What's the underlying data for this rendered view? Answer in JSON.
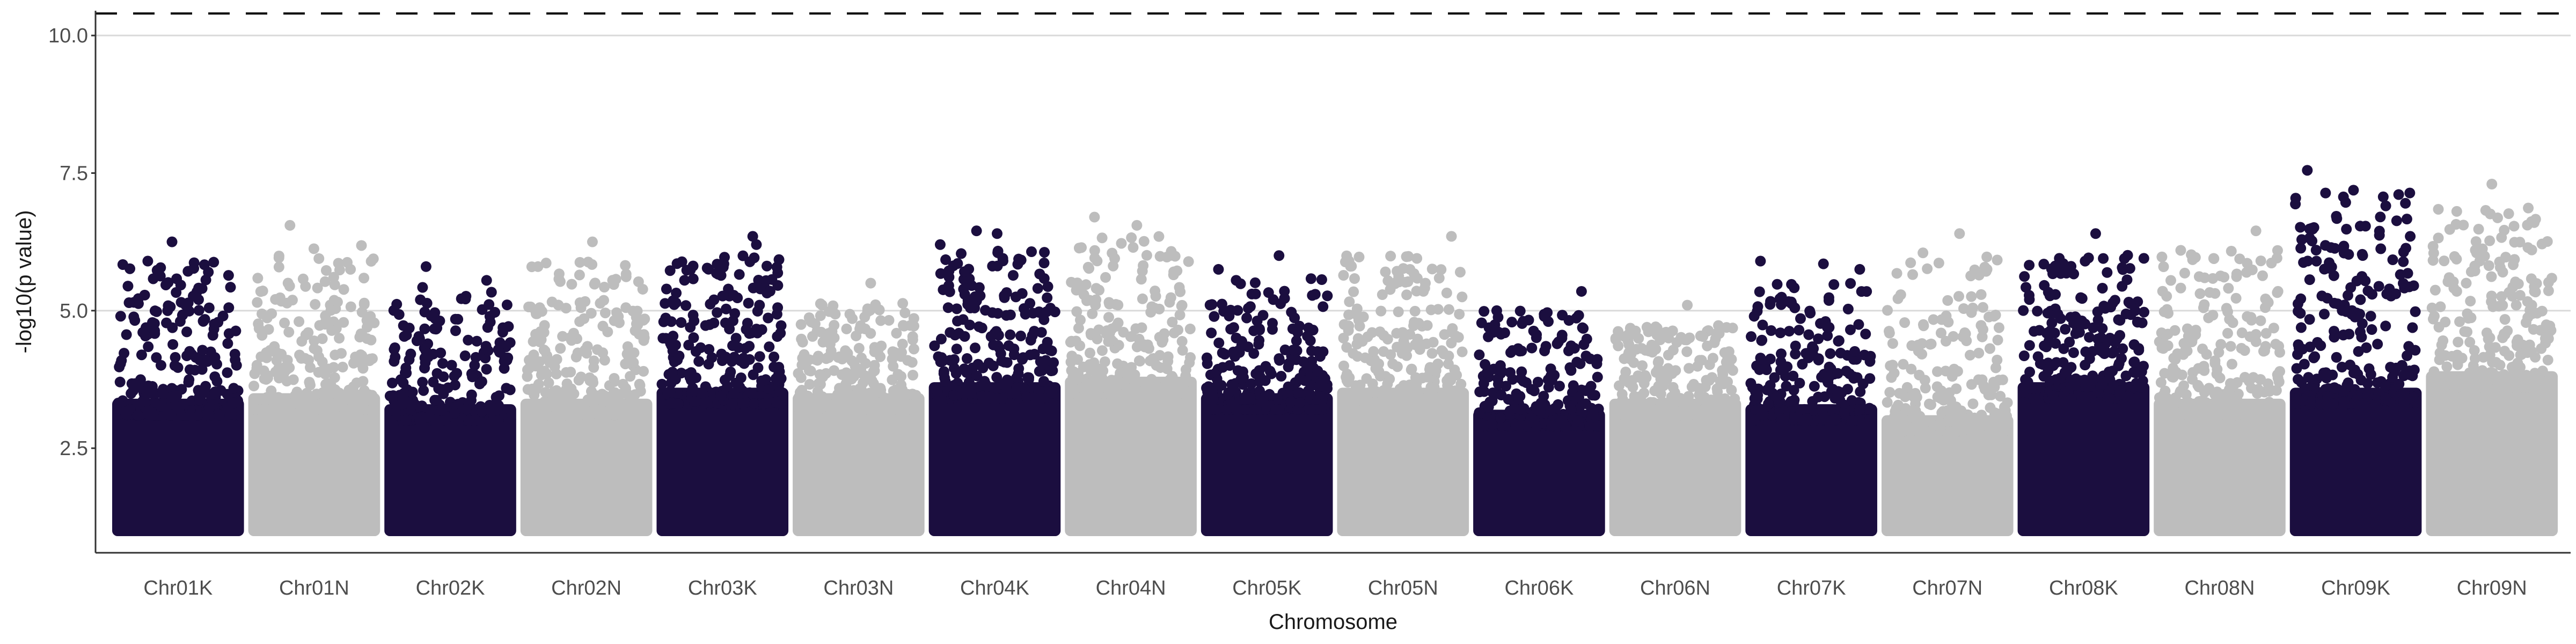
{
  "chart_data": {
    "type": "scatter",
    "title": "",
    "xlabel": "Chromosome",
    "ylabel": "-log10(p value)",
    "ylim": [
      0.6,
      10.45
    ],
    "yticks": [
      2.5,
      5.0,
      7.5,
      10.0
    ],
    "ytick_labels": [
      "2.5",
      "5.0",
      "7.5",
      "10.0"
    ],
    "grid_y": [
      5.0,
      10.0
    ],
    "threshold_line": {
      "y": 10.4,
      "style": "dashed"
    },
    "colors": {
      "dark": "#1b0e3f",
      "light": "#bdbdbd",
      "grid": "#d9d9d9",
      "threshold": "#000000"
    },
    "categories": [
      "Chr01K",
      "Chr01N",
      "Chr02K",
      "Chr02N",
      "Chr03K",
      "Chr03N",
      "Chr04K",
      "Chr04N",
      "Chr05K",
      "Chr05N",
      "Chr06K",
      "Chr06N",
      "Chr07K",
      "Chr07N",
      "Chr08K",
      "Chr08N",
      "Chr09K",
      "Chr09N"
    ],
    "chromosomes": [
      {
        "name": "Chr01K",
        "color": "dark",
        "floor": 1.0,
        "dense_top": 3.4,
        "max": 6.25
      },
      {
        "name": "Chr01N",
        "color": "light",
        "floor": 1.0,
        "dense_top": 3.5,
        "max": 6.55
      },
      {
        "name": "Chr02K",
        "color": "dark",
        "floor": 1.0,
        "dense_top": 3.3,
        "max": 5.8
      },
      {
        "name": "Chr02N",
        "color": "light",
        "floor": 1.0,
        "dense_top": 3.4,
        "max": 6.25
      },
      {
        "name": "Chr03K",
        "color": "dark",
        "floor": 1.0,
        "dense_top": 3.6,
        "max": 6.35
      },
      {
        "name": "Chr03N",
        "color": "light",
        "floor": 1.0,
        "dense_top": 3.5,
        "max": 5.5
      },
      {
        "name": "Chr04K",
        "color": "dark",
        "floor": 1.0,
        "dense_top": 3.7,
        "max": 6.45
      },
      {
        "name": "Chr04N",
        "color": "light",
        "floor": 1.0,
        "dense_top": 3.8,
        "max": 6.7
      },
      {
        "name": "Chr05K",
        "color": "dark",
        "floor": 1.0,
        "dense_top": 3.5,
        "max": 6.0
      },
      {
        "name": "Chr05N",
        "color": "light",
        "floor": 1.0,
        "dense_top": 3.6,
        "max": 6.35
      },
      {
        "name": "Chr06K",
        "color": "dark",
        "floor": 1.0,
        "dense_top": 3.2,
        "max": 5.35
      },
      {
        "name": "Chr06N",
        "color": "light",
        "floor": 1.0,
        "dense_top": 3.4,
        "max": 5.1
      },
      {
        "name": "Chr07K",
        "color": "dark",
        "floor": 1.0,
        "dense_top": 3.3,
        "max": 5.9
      },
      {
        "name": "Chr07N",
        "color": "light",
        "floor": 1.0,
        "dense_top": 3.1,
        "max": 6.4
      },
      {
        "name": "Chr08K",
        "color": "dark",
        "floor": 1.0,
        "dense_top": 3.7,
        "max": 6.4
      },
      {
        "name": "Chr08N",
        "color": "light",
        "floor": 1.0,
        "dense_top": 3.4,
        "max": 6.45
      },
      {
        "name": "Chr09K",
        "color": "dark",
        "floor": 1.0,
        "dense_top": 3.6,
        "max": 7.55
      },
      {
        "name": "Chr09N",
        "color": "light",
        "floor": 1.0,
        "dense_top": 3.9,
        "max": 7.3
      }
    ],
    "top_points": [
      {
        "chr": "Chr01K",
        "pos": 0.45,
        "y": 6.25
      },
      {
        "chr": "Chr01K",
        "pos": 0.25,
        "y": 5.9
      },
      {
        "chr": "Chr01K",
        "pos": 0.75,
        "y": 5.7
      },
      {
        "chr": "Chr01N",
        "pos": 0.3,
        "y": 6.55
      },
      {
        "chr": "Chr01N",
        "pos": 0.8,
        "y": 5.75
      },
      {
        "chr": "Chr02K",
        "pos": 0.3,
        "y": 5.8
      },
      {
        "chr": "Chr02K",
        "pos": 0.8,
        "y": 5.55
      },
      {
        "chr": "Chr02N",
        "pos": 0.55,
        "y": 6.25
      },
      {
        "chr": "Chr02N",
        "pos": 0.1,
        "y": 5.8
      },
      {
        "chr": "Chr03K",
        "pos": 0.75,
        "y": 6.35
      },
      {
        "chr": "Chr03K",
        "pos": 0.78,
        "y": 6.2
      },
      {
        "chr": "Chr03N",
        "pos": 0.6,
        "y": 5.5
      },
      {
        "chr": "Chr04K",
        "pos": 0.05,
        "y": 6.2
      },
      {
        "chr": "Chr04K",
        "pos": 0.35,
        "y": 6.45
      },
      {
        "chr": "Chr04K",
        "pos": 0.52,
        "y": 6.4
      },
      {
        "chr": "Chr04N",
        "pos": 0.2,
        "y": 6.7
      },
      {
        "chr": "Chr04N",
        "pos": 0.55,
        "y": 6.55
      },
      {
        "chr": "Chr05K",
        "pos": 0.6,
        "y": 6.0
      },
      {
        "chr": "Chr05K",
        "pos": 0.1,
        "y": 5.75
      },
      {
        "chr": "Chr05N",
        "pos": 0.9,
        "y": 6.35
      },
      {
        "chr": "Chr06K",
        "pos": 0.85,
        "y": 5.35
      },
      {
        "chr": "Chr06K",
        "pos": 0.15,
        "y": 5.0
      },
      {
        "chr": "Chr06N",
        "pos": 0.6,
        "y": 5.1
      },
      {
        "chr": "Chr07K",
        "pos": 0.08,
        "y": 5.9
      },
      {
        "chr": "Chr07K",
        "pos": 0.6,
        "y": 5.85
      },
      {
        "chr": "Chr07K",
        "pos": 0.9,
        "y": 5.75
      },
      {
        "chr": "Chr07N",
        "pos": 0.6,
        "y": 6.4
      },
      {
        "chr": "Chr08K",
        "pos": 0.6,
        "y": 6.4
      },
      {
        "chr": "Chr08K",
        "pos": 0.3,
        "y": 5.95
      },
      {
        "chr": "Chr08N",
        "pos": 0.8,
        "y": 6.45
      },
      {
        "chr": "Chr09K",
        "pos": 0.1,
        "y": 7.55
      },
      {
        "chr": "Chr09K",
        "pos": 0.4,
        "y": 6.15
      },
      {
        "chr": "Chr09K",
        "pos": 0.95,
        "y": 6.35
      },
      {
        "chr": "Chr09N",
        "pos": 0.5,
        "y": 7.3
      },
      {
        "chr": "Chr09N",
        "pos": 0.85,
        "y": 6.6
      },
      {
        "chr": "Chr09N",
        "pos": 0.4,
        "y": 5.9
      }
    ]
  }
}
